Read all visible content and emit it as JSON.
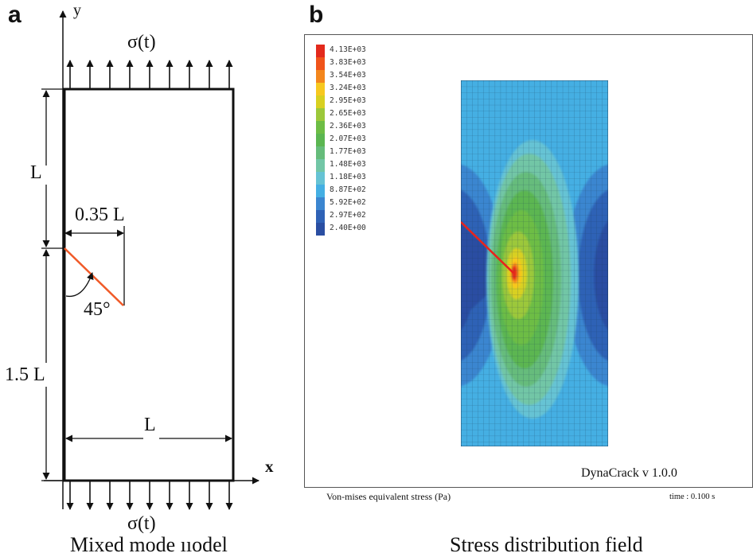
{
  "panel_a": {
    "letter": "a",
    "y_axis_label": "y",
    "x_axis_label": "x",
    "top_load_label": "σ(t)",
    "bottom_load_label": "σ(t)",
    "dim_upper_height": "L",
    "dim_crack_offset": "0.35 L",
    "crack_angle": "45°",
    "dim_lower_height": "1.5 L",
    "dim_width": "L",
    "caption": "Mixed mode ııodel",
    "crack_color": "#f05a28"
  },
  "panel_b": {
    "letter": "b",
    "legend": [
      {
        "label": "4.13E+03",
        "color": "#e32a1c"
      },
      {
        "label": "3.83E+03",
        "color": "#f0541a"
      },
      {
        "label": "3.54E+03",
        "color": "#f3861c"
      },
      {
        "label": "3.24E+03",
        "color": "#f7c81f"
      },
      {
        "label": "2.95E+03",
        "color": "#d8d020"
      },
      {
        "label": "2.65E+03",
        "color": "#9cc83a"
      },
      {
        "label": "2.36E+03",
        "color": "#6dbd45"
      },
      {
        "label": "2.07E+03",
        "color": "#5bb651"
      },
      {
        "label": "1.77E+03",
        "color": "#66bc7b"
      },
      {
        "label": "1.48E+03",
        "color": "#72c6a6"
      },
      {
        "label": "1.18E+03",
        "color": "#66c3d4"
      },
      {
        "label": "8.87E+02",
        "color": "#45afe3"
      },
      {
        "label": "5.92E+02",
        "color": "#3b86d0"
      },
      {
        "label": "2.97E+02",
        "color": "#2f62b6"
      },
      {
        "label": "2.40E+00",
        "color": "#2a4ea2"
      }
    ],
    "software_label": "DynaCrack v 1.0.0",
    "stress_label": "Von-mises equivalent stress (Pa)",
    "time_label": "time : 0.100 s",
    "caption": "Stress distribution field",
    "crack_color": "#e8231c"
  }
}
